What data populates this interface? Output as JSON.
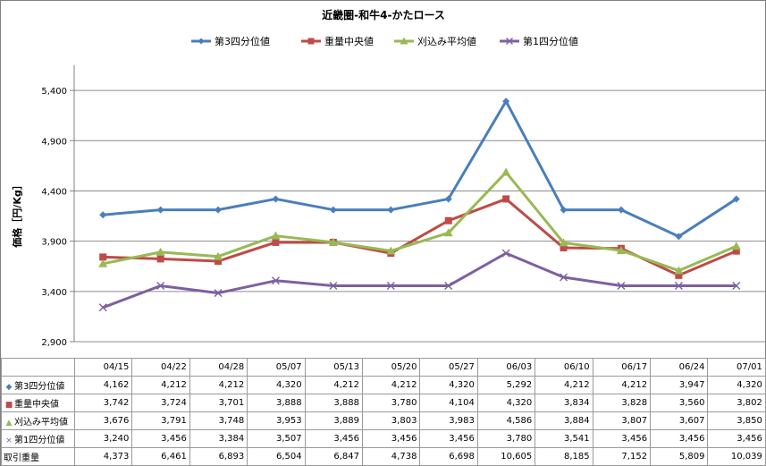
{
  "chart_data": {
    "type": "line",
    "title": "近畿圏-和牛4-かたロース",
    "ylabel": "価格［円/Kg］",
    "ylim": [
      2900,
      5650
    ],
    "yticks": [
      2900,
      3400,
      3900,
      4400,
      4900,
      5400
    ],
    "ytick_labels": [
      "2,900",
      "3,400",
      "3,900",
      "4,400",
      "4,900",
      "5,400"
    ],
    "grid": true,
    "legend_position": "top",
    "categories": [
      "04/15",
      "04/22",
      "04/28",
      "05/07",
      "05/13",
      "05/20",
      "05/27",
      "06/03",
      "06/10",
      "06/17",
      "06/24",
      "07/01"
    ],
    "series": [
      {
        "name": "第3四分位値",
        "color": "#4a7ebb",
        "marker": "diamond",
        "values": [
          4162,
          4212,
          4212,
          4320,
          4212,
          4212,
          4320,
          5292,
          4212,
          4212,
          3947,
          4320
        ],
        "labels": [
          "4,162",
          "4,212",
          "4,212",
          "4,320",
          "4,212",
          "4,212",
          "4,320",
          "5,292",
          "4,212",
          "4,212",
          "3,947",
          "4,320"
        ]
      },
      {
        "name": "重量中央値",
        "color": "#be4b48",
        "marker": "square",
        "values": [
          3742,
          3724,
          3701,
          3888,
          3888,
          3780,
          4104,
          4320,
          3834,
          3828,
          3560,
          3802
        ],
        "labels": [
          "3,742",
          "3,724",
          "3,701",
          "3,888",
          "3,888",
          "3,780",
          "4,104",
          "4,320",
          "3,834",
          "3,828",
          "3,560",
          "3,802"
        ]
      },
      {
        "name": "刈込み平均値",
        "color": "#98b954",
        "marker": "triangle",
        "values": [
          3676,
          3791,
          3748,
          3953,
          3889,
          3803,
          3983,
          4586,
          3884,
          3807,
          3607,
          3850
        ],
        "labels": [
          "3,676",
          "3,791",
          "3,748",
          "3,953",
          "3,889",
          "3,803",
          "3,983",
          "4,586",
          "3,884",
          "3,807",
          "3,607",
          "3,850"
        ]
      },
      {
        "name": "第1四分位値",
        "color": "#7d60a0",
        "marker": "x",
        "values": [
          3240,
          3456,
          3384,
          3507,
          3456,
          3456,
          3456,
          3780,
          3541,
          3456,
          3456,
          3456
        ],
        "labels": [
          "3,240",
          "3,456",
          "3,384",
          "3,507",
          "3,456",
          "3,456",
          "3,456",
          "3,780",
          "3,541",
          "3,456",
          "3,456",
          "3,456"
        ]
      }
    ],
    "table_extra_rows": [
      {
        "name": "取引重量",
        "labels": [
          "4,373",
          "6,461",
          "6,893",
          "6,504",
          "6,847",
          "4,738",
          "6,698",
          "10,605",
          "8,185",
          "7,152",
          "5,809",
          "10,039"
        ]
      }
    ]
  }
}
